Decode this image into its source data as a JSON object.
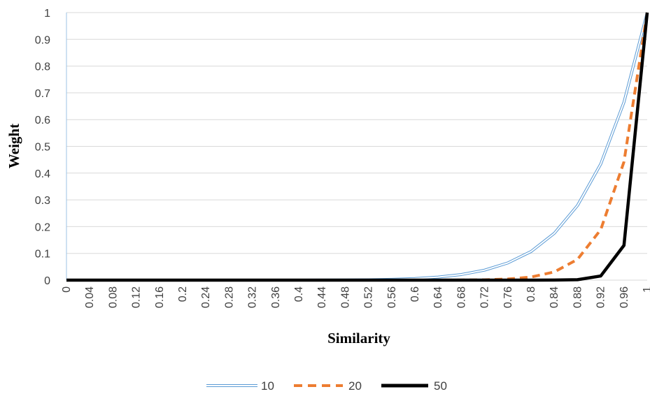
{
  "chart_data": {
    "type": "line",
    "xlabel": "Similarity",
    "ylabel": "Weight",
    "xlim": [
      0,
      1
    ],
    "ylim": [
      0,
      1
    ],
    "x_ticks": [
      "0",
      "0.04",
      "0.08",
      "0.12",
      "0.16",
      "0.2",
      "0.24",
      "0.28",
      "0.32",
      "0.36",
      "0.4",
      "0.44",
      "0.48",
      "0.52",
      "0.56",
      "0.6",
      "0.64",
      "0.68",
      "0.72",
      "0.76",
      "0.8",
      "0.84",
      "0.88",
      "0.92",
      "0.96",
      "1"
    ],
    "y_ticks": [
      "0",
      "0.1",
      "0.2",
      "0.3",
      "0.4",
      "0.5",
      "0.6",
      "0.7",
      "0.8",
      "0.9",
      "1"
    ],
    "grid": "horizontal",
    "legend_position": "bottom",
    "x": [
      0,
      0.04,
      0.08,
      0.12,
      0.16,
      0.2,
      0.24,
      0.28,
      0.32,
      0.36,
      0.4,
      0.44,
      0.48,
      0.52,
      0.56,
      0.6,
      0.64,
      0.68,
      0.72,
      0.76,
      0.8,
      0.84,
      0.88,
      0.92,
      0.96,
      1
    ],
    "series": [
      {
        "name": "10",
        "color": "#5B9BD5",
        "style": "double",
        "values": [
          0,
          0,
          0,
          0,
          0,
          0,
          0,
          0,
          0,
          0,
          0.0001,
          0.0003,
          0.0006,
          0.0014,
          0.003,
          0.006,
          0.0115,
          0.021,
          0.0374,
          0.0643,
          0.107,
          0.175,
          0.279,
          0.434,
          0.665,
          1
        ]
      },
      {
        "name": "20",
        "color": "#ED7D31",
        "style": "dashed",
        "values": [
          0,
          0,
          0,
          0,
          0,
          0,
          0,
          0,
          0,
          0,
          0,
          0,
          0,
          0,
          0,
          0,
          0.0001,
          0.0004,
          0.0014,
          0.0041,
          0.0115,
          0.0306,
          0.0776,
          0.1887,
          0.442,
          1
        ]
      },
      {
        "name": "50",
        "color": "#000000",
        "style": "solid",
        "values": [
          0,
          0,
          0,
          0,
          0,
          0,
          0,
          0,
          0,
          0,
          0,
          0,
          0,
          0,
          0,
          0,
          0,
          0,
          0,
          0,
          0,
          0.0002,
          0.0017,
          0.0155,
          0.1299,
          1
        ]
      }
    ]
  }
}
